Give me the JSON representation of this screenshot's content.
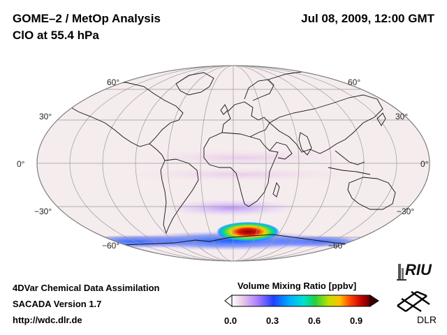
{
  "header": {
    "title": "GOME–2 / MetOp Analysis",
    "subtitle": "ClO at 55.4 hPa",
    "datetime": "Jul 08, 2009, 12:00 GMT"
  },
  "map": {
    "projection": "Mollweide",
    "lat_labels_left": [
      "60°",
      "30°",
      "0°",
      "−30°",
      "−60°"
    ],
    "lat_labels_right": [
      "60°",
      "30°",
      "0°",
      "−30°",
      "−60°"
    ]
  },
  "footer": {
    "line1": "4DVar Chemical Data Assimilation",
    "line2": "SACADA Version 1.7",
    "line3": "http://wdc.dlr.de"
  },
  "colorbar": {
    "title": "Volume Mixing Ratio [ppbv]",
    "ticks": [
      "0.0",
      "0.3",
      "0.6",
      "0.9"
    ],
    "range": [
      0.0,
      0.9
    ]
  },
  "logos": {
    "riu": "RIU",
    "dlr": "DLR"
  }
}
